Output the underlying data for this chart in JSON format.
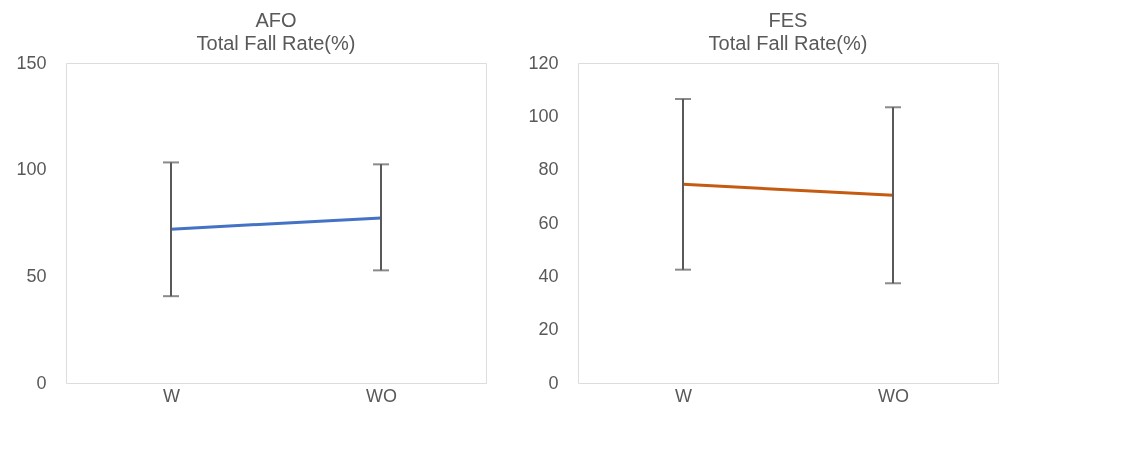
{
  "chart_data": [
    {
      "type": "line",
      "title": "AFO",
      "subtitle": "Total Fall Rate(%)",
      "categories": [
        "W",
        "WO"
      ],
      "series": [
        {
          "color": "#4472c4",
          "values": [
            72.1,
            77.4
          ],
          "errors": [
            [
              40.7,
              103.4
            ],
            [
              52.8,
              102.5
            ]
          ]
        }
      ],
      "ylim": [
        0,
        150
      ],
      "yticks": [
        0,
        50,
        100,
        150
      ],
      "grid": false,
      "marker": "none",
      "line_style": "solid"
    },
    {
      "type": "line",
      "title": "FES",
      "subtitle": "Total Fall Rate(%)",
      "categories": [
        "W",
        "WO"
      ],
      "series": [
        {
          "color": "#c55a11",
          "values": [
            74.5,
            70.4
          ],
          "errors": [
            [
              42.5,
              106.5
            ],
            [
              37.4,
              103.4
            ]
          ]
        }
      ],
      "ylim": [
        0,
        120
      ],
      "yticks": [
        0,
        20,
        40,
        60,
        80,
        100,
        120
      ],
      "grid": false,
      "marker": "none",
      "line_style": "solid"
    }
  ]
}
